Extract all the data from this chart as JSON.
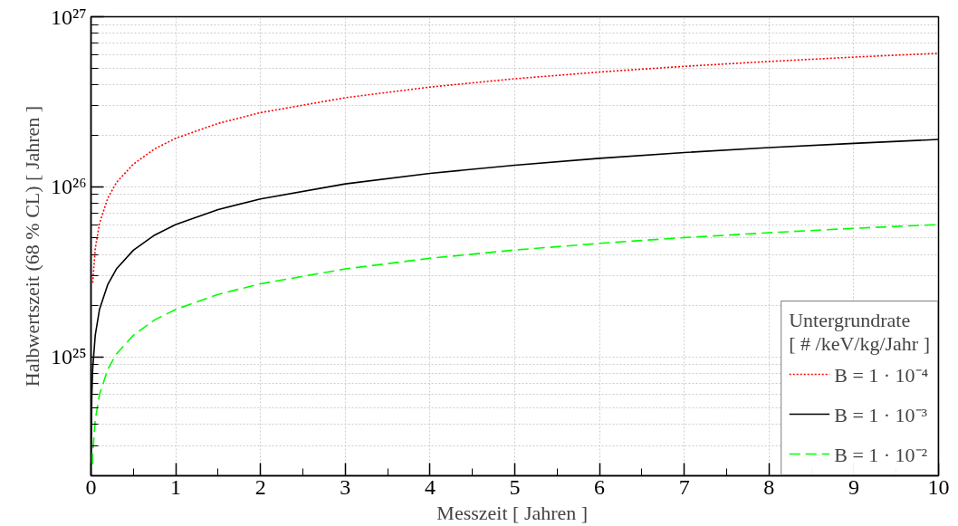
{
  "chart_data": {
    "type": "line",
    "xlabel": "Messzeit  [ Jahren ]",
    "ylabel": "Halbwertszeit (68 % CL) [ Jahren ]",
    "legend_title": "Untergrundrate\n[ # /keV/kg/Jahr ]",
    "log": "y",
    "xlim": [
      0,
      10
    ],
    "ylim": [
      2e+24,
      1e+27
    ],
    "xticks": [
      0,
      {
        "value": 0.5,
        "label": null
      },
      1,
      {
        "value": 1.5,
        "label": null
      },
      2,
      {
        "value": 2.5,
        "label": null
      },
      3,
      {
        "value": 3.5,
        "label": null
      },
      4,
      {
        "value": 4.5,
        "label": null
      },
      5,
      {
        "value": 5.5,
        "label": null
      },
      6,
      {
        "value": 6.5,
        "label": null
      },
      7,
      {
        "value": 7.5,
        "label": null
      },
      8,
      {
        "value": 8.5,
        "label": null
      },
      9,
      {
        "value": 9.5,
        "label": null
      },
      10
    ],
    "yticks": [
      {
        "value": 2e+24,
        "label": null
      },
      {
        "value": 3e+24,
        "label": null
      },
      {
        "value": 4e+24,
        "label": null
      },
      {
        "value": 5e+24,
        "label": null
      },
      {
        "value": 6e+24,
        "label": null
      },
      {
        "value": 7e+24,
        "label": null
      },
      {
        "value": 8e+24,
        "label": null
      },
      {
        "value": 9e+24,
        "label": null
      },
      {
        "value": 1e+25,
        "label": "10²⁵"
      },
      {
        "value": 2e+25,
        "label": null
      },
      {
        "value": 3e+25,
        "label": null
      },
      {
        "value": 4e+25,
        "label": null
      },
      {
        "value": 5e+25,
        "label": null
      },
      {
        "value": 6e+25,
        "label": null
      },
      {
        "value": 7e+25,
        "label": null
      },
      {
        "value": 8e+25,
        "label": null
      },
      {
        "value": 9e+25,
        "label": null
      },
      {
        "value": 1e+26,
        "label": "10²⁶"
      },
      {
        "value": 2e+26,
        "label": null
      },
      {
        "value": 3e+26,
        "label": null
      },
      {
        "value": 4e+26,
        "label": null
      },
      {
        "value": 5e+26,
        "label": null
      },
      {
        "value": 6e+26,
        "label": null
      },
      {
        "value": 7e+26,
        "label": null
      },
      {
        "value": 8e+26,
        "label": null
      },
      {
        "value": 9e+26,
        "label": null
      },
      {
        "value": 1e+27,
        "label": "10²⁷"
      }
    ],
    "grid": true,
    "legend": "bottom right",
    "marker": "none",
    "series": [
      {
        "name": "B = 1 · 10⁻⁴",
        "color": "#ff0000",
        "line_style": "dotted",
        "x": [
          0.02,
          0.05,
          0.1,
          0.2,
          0.3,
          0.5,
          0.75,
          1,
          1.5,
          2,
          3,
          4,
          5,
          6,
          7,
          8,
          9,
          10
        ],
        "values": [
          2.73e+25,
          4.32e+25,
          6.1e+25,
          8.63e+25,
          1.06e+26,
          1.36e+26,
          1.67e+26,
          1.93e+26,
          2.36e+26,
          2.73e+26,
          3.34e+26,
          3.86e+26,
          4.32e+26,
          4.73e+26,
          5.11e+26,
          5.46e+26,
          5.79e+26,
          6.1e+26
        ]
      },
      {
        "name": "B = 1 · 10⁻³",
        "color": "#000000",
        "line_style": "solid",
        "x": [
          0.002,
          0.005,
          0.01,
          0.02,
          0.05,
          0.1,
          0.2,
          0.3,
          0.5,
          0.75,
          1,
          1.5,
          2,
          3,
          4,
          5,
          6,
          7,
          8,
          9,
          10
        ],
        "values": [
          2.7e+24,
          4.2e+24,
          6e+24,
          8.5e+24,
          1.34e+25,
          1.9e+25,
          2.68e+25,
          3.29e+25,
          4.24e+25,
          5.2e+25,
          6e+25,
          7.35e+25,
          8.49e+25,
          1.04e+26,
          1.2e+26,
          1.34e+26,
          1.47e+26,
          1.59e+26,
          1.7e+26,
          1.8e+26,
          1.9e+26
        ]
      },
      {
        "name": "B = 1 · 10⁻²",
        "color": "#00ff00",
        "line_style": "dashed",
        "x": [
          0.015,
          0.02,
          0.05,
          0.1,
          0.2,
          0.3,
          0.5,
          0.75,
          1,
          1.5,
          2,
          3,
          4,
          5,
          6,
          7,
          8,
          9,
          10
        ],
        "values": [
          2.33e+24,
          2.69e+24,
          4.25e+24,
          6e+24,
          8.5e+24,
          1.04e+25,
          1.34e+25,
          1.65e+25,
          1.9e+25,
          2.33e+25,
          2.69e+25,
          3.29e+25,
          3.8e+25,
          4.25e+25,
          4.65e+25,
          5.03e+25,
          5.37e+25,
          5.7e+25,
          6e+25
        ]
      }
    ]
  }
}
